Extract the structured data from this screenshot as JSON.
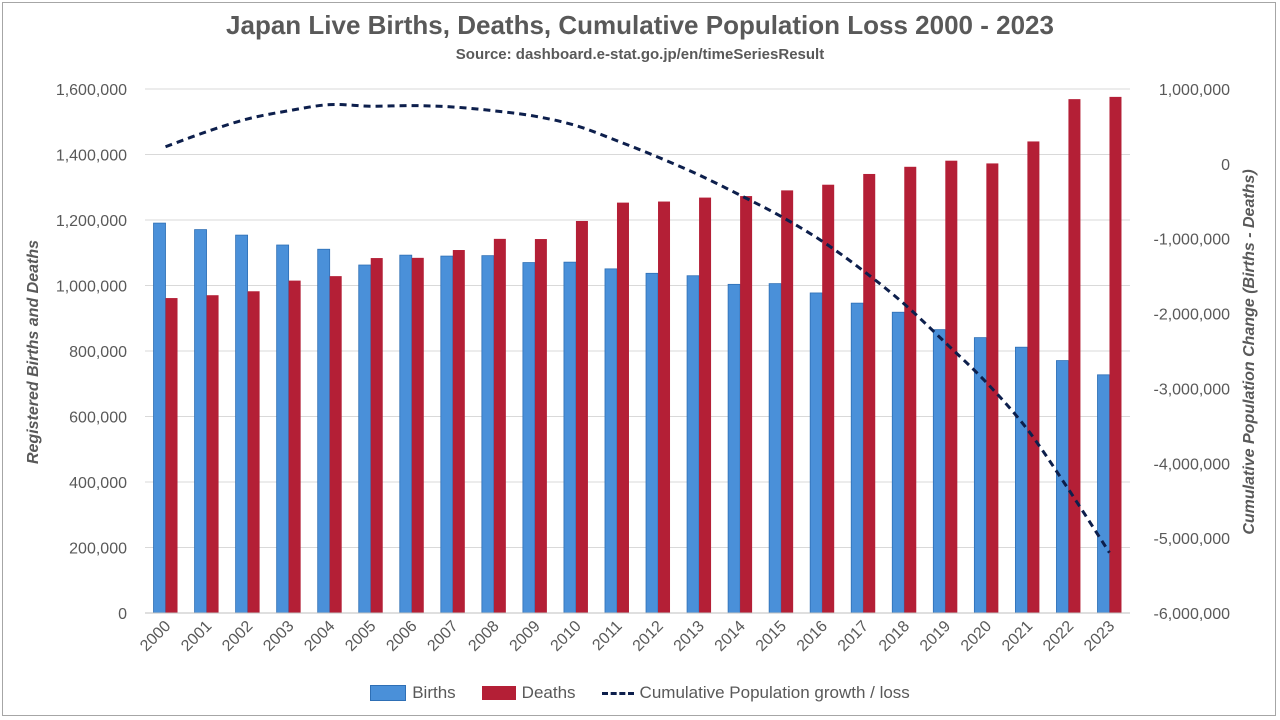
{
  "chart_data": {
    "type": "bar",
    "title": "Japan Live Births, Deaths, Cumulative Population Loss 2000 - 2023",
    "subtitle": "Source: dashboard.e-stat.go.jp/en/timeSeriesResult",
    "ylabel": "Registered Births and Deaths",
    "y2label": "Cumulative Population Change (Births - Deaths)",
    "xlabel": "",
    "ylim": [
      0,
      1600000
    ],
    "y2lim": [
      -6000000,
      1000000
    ],
    "grid": true,
    "legend_position": "bottom",
    "categories": [
      "2000",
      "2001",
      "2002",
      "2003",
      "2004",
      "2005",
      "2006",
      "2007",
      "2008",
      "2009",
      "2010",
      "2011",
      "2012",
      "2013",
      "2014",
      "2015",
      "2016",
      "2017",
      "2018",
      "2019",
      "2020",
      "2021",
      "2022",
      "2023"
    ],
    "y_ticks": [
      0,
      200000,
      400000,
      600000,
      800000,
      1000000,
      1200000,
      1400000,
      1600000
    ],
    "y_tick_labels": [
      "0",
      "200,000",
      "400,000",
      "600,000",
      "800,000",
      "1,000,000",
      "1,200,000",
      "1,400,000",
      "1,600,000"
    ],
    "y2_ticks": [
      -6000000,
      -5000000,
      -4000000,
      -3000000,
      -2000000,
      -1000000,
      0,
      1000000
    ],
    "y2_tick_labels": [
      "-6,000,000",
      "-5,000,000",
      "-4,000,000",
      "-3,000,000",
      "-2,000,000",
      "-1,000,000",
      "0",
      "1,000,000"
    ],
    "series": [
      {
        "name": "Births",
        "type": "bar",
        "axis": "left",
        "color": "#4a90d9",
        "values": [
          1190547,
          1170662,
          1153855,
          1123610,
          1110721,
          1062530,
          1092674,
          1089818,
          1091156,
          1070036,
          1071304,
          1050806,
          1037231,
          1029816,
          1003539,
          1005721,
          977242,
          946146,
          918400,
          865239,
          840835,
          811622,
          770759,
          727288
        ]
      },
      {
        "name": "Deaths",
        "type": "bar",
        "axis": "left",
        "color": "#b41f36",
        "values": [
          961653,
          970331,
          982379,
          1014951,
          1028602,
          1083796,
          1084451,
          1108334,
          1142407,
          1141865,
          1197014,
          1253066,
          1256359,
          1268436,
          1273025,
          1290444,
          1307748,
          1340567,
          1362470,
          1381093,
          1372755,
          1439856,
          1569050,
          1575936
        ]
      },
      {
        "name": "Cumulative Population growth / loss",
        "type": "line",
        "axis": "right",
        "color": "#0d1f4c",
        "dash": true,
        "values": [
          228894,
          429225,
          600701,
          709360,
          791479,
          770213,
          778436,
          759920,
          708669,
          636840,
          511130,
          308870,
          89742,
          -148878,
          -418364,
          -703087,
          -1033593,
          -1428014,
          -1872084,
          -2387938,
          -2919858,
          -3548092,
          -4346383,
          -5195031
        ]
      }
    ]
  }
}
